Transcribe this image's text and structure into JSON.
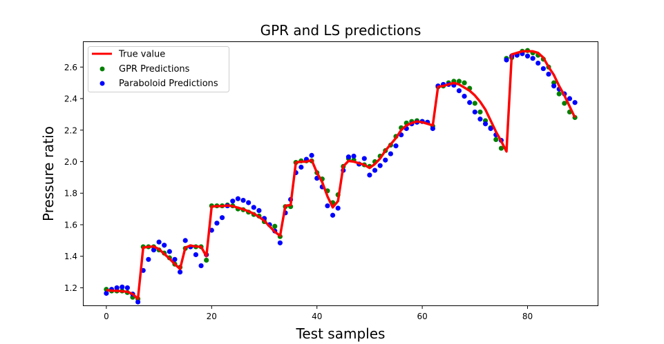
{
  "chart_data": {
    "type": "line",
    "title": "GPR and LS predictions",
    "xlabel": "Test samples",
    "ylabel": "Pressure ratio",
    "xlim": [
      -4.45,
      93.45
    ],
    "ylim": [
      1.084,
      2.763
    ],
    "xticks": [
      0,
      20,
      40,
      60,
      80
    ],
    "yticks": [
      1.2,
      1.4,
      1.6,
      1.8,
      2.0,
      2.2,
      2.4,
      2.6
    ],
    "grid": false,
    "legend_position": "top-left",
    "series": [
      {
        "name": "True value",
        "kind": "line",
        "color": "#ff0000",
        "values": [
          1.185,
          1.182,
          1.181,
          1.178,
          1.175,
          1.16,
          1.13,
          1.455,
          1.46,
          1.462,
          1.445,
          1.415,
          1.385,
          1.35,
          1.32,
          1.455,
          1.468,
          1.462,
          1.46,
          1.4,
          1.715,
          1.718,
          1.718,
          1.722,
          1.718,
          1.708,
          1.698,
          1.685,
          1.67,
          1.65,
          1.625,
          1.59,
          1.555,
          1.53,
          1.72,
          1.725,
          1.995,
          2.0,
          2.0,
          2.01,
          1.93,
          1.87,
          1.78,
          1.71,
          1.75,
          1.97,
          2.005,
          2.0,
          1.99,
          1.98,
          1.96,
          1.985,
          2.02,
          2.07,
          2.11,
          2.15,
          2.2,
          2.23,
          2.245,
          2.255,
          2.25,
          2.24,
          2.23,
          2.475,
          2.48,
          2.49,
          2.5,
          2.49,
          2.47,
          2.45,
          2.42,
          2.38,
          2.33,
          2.26,
          2.19,
          2.13,
          2.065,
          2.68,
          2.69,
          2.7,
          2.7,
          2.7,
          2.69,
          2.66,
          2.6,
          2.55,
          2.48,
          2.42,
          2.35,
          2.28
        ]
      },
      {
        "name": "GPR Predictions",
        "kind": "scatter",
        "color": "#008000",
        "values": [
          1.19,
          1.18,
          1.18,
          1.18,
          1.17,
          1.14,
          1.13,
          1.46,
          1.46,
          1.46,
          1.44,
          1.42,
          1.39,
          1.35,
          1.33,
          1.45,
          1.46,
          1.46,
          1.46,
          1.375,
          1.72,
          1.72,
          1.72,
          1.725,
          1.72,
          1.7,
          1.695,
          1.68,
          1.665,
          1.655,
          1.62,
          1.6,
          1.59,
          1.525,
          1.715,
          1.715,
          1.995,
          2.005,
          2.005,
          2.005,
          1.93,
          1.89,
          1.815,
          1.74,
          1.79,
          1.97,
          2.02,
          2.01,
          1.985,
          1.98,
          1.97,
          2.0,
          2.035,
          2.07,
          2.105,
          2.16,
          2.215,
          2.245,
          2.255,
          2.26,
          2.255,
          2.25,
          2.225,
          2.475,
          2.48,
          2.5,
          2.51,
          2.51,
          2.5,
          2.465,
          2.37,
          2.315,
          2.26,
          2.215,
          2.14,
          2.085,
          2.655,
          2.66,
          2.68,
          2.7,
          2.705,
          2.69,
          2.675,
          2.65,
          2.6,
          2.5,
          2.43,
          2.37,
          2.315,
          2.28
        ]
      },
      {
        "name": "Paraboloid Predictions",
        "kind": "scatter",
        "color": "#0000ff",
        "values": [
          1.165,
          1.19,
          1.2,
          1.205,
          1.2,
          1.16,
          1.11,
          1.31,
          1.38,
          1.44,
          1.49,
          1.47,
          1.43,
          1.38,
          1.3,
          1.5,
          1.46,
          1.41,
          1.34,
          1.41,
          1.565,
          1.61,
          1.645,
          1.72,
          1.75,
          1.765,
          1.755,
          1.74,
          1.71,
          1.69,
          1.64,
          1.6,
          1.56,
          1.485,
          1.675,
          1.76,
          1.93,
          1.965,
          2.015,
          2.04,
          1.895,
          1.84,
          1.72,
          1.66,
          1.705,
          1.945,
          2.03,
          2.035,
          1.985,
          2.02,
          1.915,
          1.945,
          1.975,
          2.01,
          2.05,
          2.1,
          2.17,
          2.21,
          2.24,
          2.25,
          2.255,
          2.25,
          2.21,
          2.48,
          2.49,
          2.49,
          2.485,
          2.45,
          2.415,
          2.375,
          2.315,
          2.27,
          2.24,
          2.21,
          2.17,
          2.135,
          2.645,
          2.67,
          2.675,
          2.685,
          2.67,
          2.655,
          2.625,
          2.59,
          2.555,
          2.48,
          2.46,
          2.43,
          2.4,
          2.375
        ]
      }
    ]
  }
}
